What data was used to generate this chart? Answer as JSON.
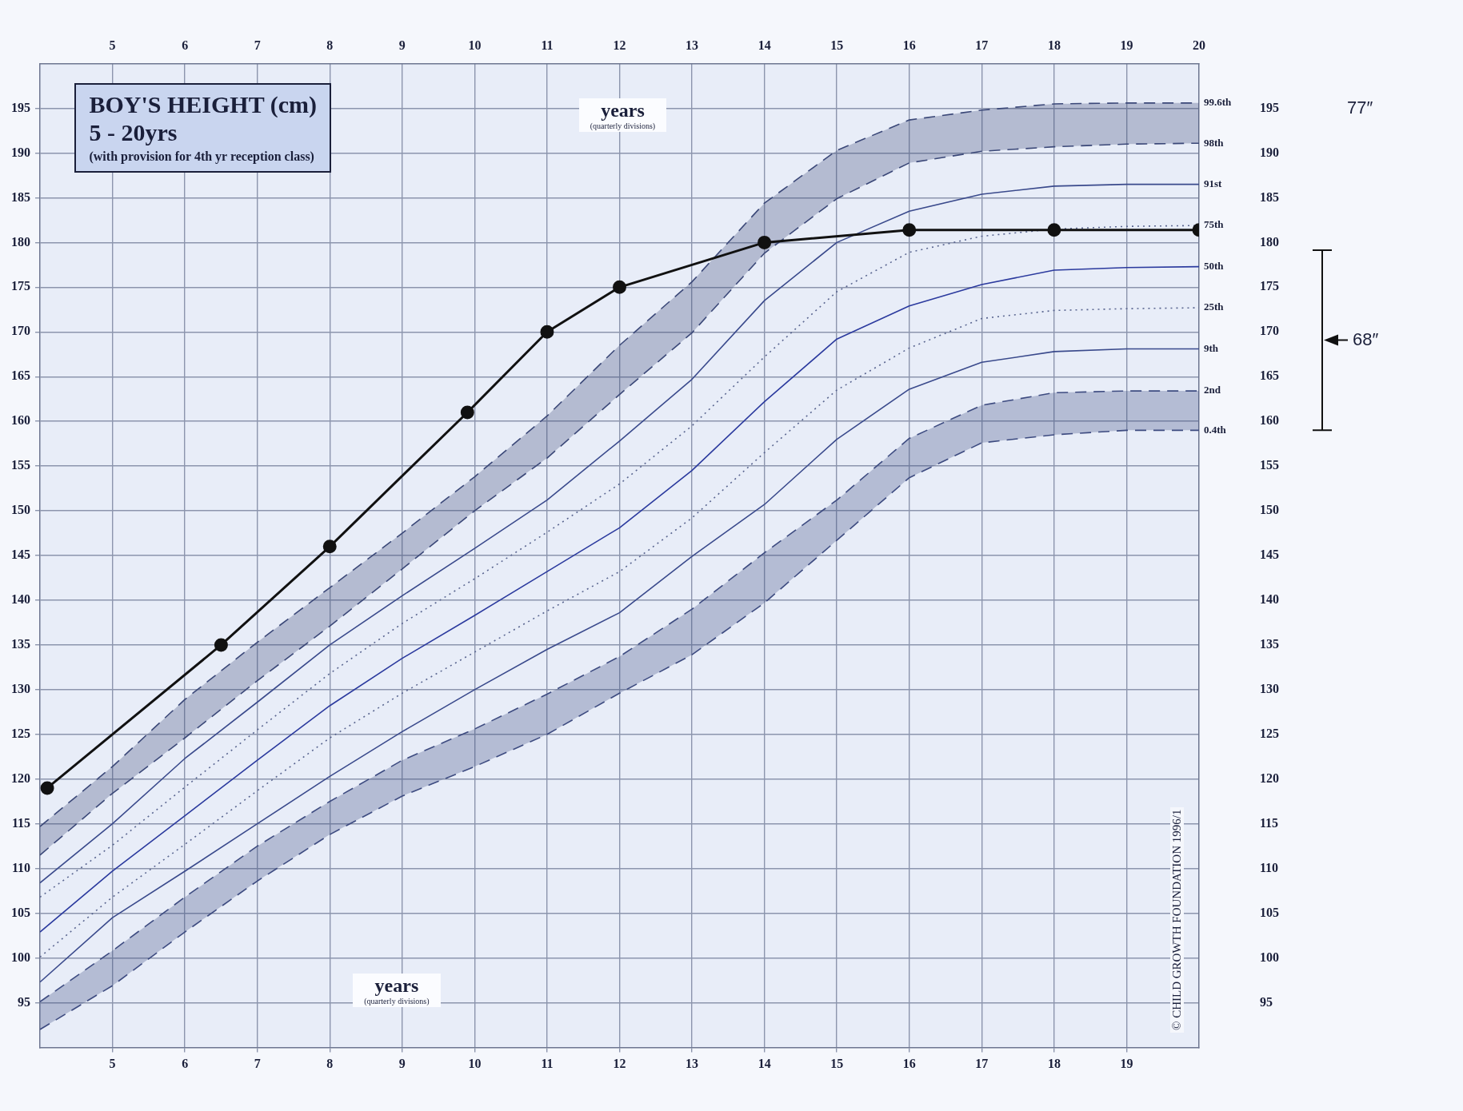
{
  "chart_data": {
    "type": "line",
    "title": "BOY'S HEIGHT (cm)",
    "subtitle": "5 - 20yrs",
    "xlabel": "years",
    "x2label": "years",
    "annotations": [
      "(with provision for 4th yr reception class)",
      "(quarterly divisions)",
      "(quarterly divisions)",
      "© CHILD GROWTH FOUNDATION 1996/1",
      "77″",
      "68″"
    ],
    "x": [
      4,
      5,
      6,
      7,
      8,
      9,
      10,
      11,
      12,
      13,
      14,
      15,
      16,
      17,
      18,
      19,
      20
    ],
    "series": [
      {
        "name": "99.6th",
        "color": "#3b4878",
        "line_style": "dashed",
        "values": [
          114.7,
          121.4,
          128.9,
          135.3,
          141.4,
          147.5,
          153.8,
          160.6,
          168.5,
          175.6,
          184.4,
          190.3,
          193.7,
          194.8,
          195.5,
          195.6,
          195.6
        ],
        "lower": [
          111.5,
          118.4,
          124.6,
          131.0,
          137.1,
          143.5,
          150.0,
          155.9,
          163.0,
          169.9,
          178.8,
          184.9,
          188.9,
          190.2,
          190.7,
          191.0,
          191.1
        ],
        "upper": [
          114.7,
          121.4,
          128.9,
          135.3,
          141.4,
          147.5,
          153.8,
          160.6,
          168.5,
          175.6,
          184.4,
          190.3,
          193.7,
          194.8,
          195.5,
          195.6,
          195.6
        ]
      },
      {
        "name": "98th",
        "color": "#3b4878",
        "line_style": "dashed",
        "values": [
          111.5,
          118.4,
          124.6,
          131.0,
          137.1,
          143.5,
          150.0,
          155.9,
          163.0,
          169.9,
          178.8,
          184.9,
          188.9,
          190.2,
          190.7,
          191.0,
          191.1
        ]
      },
      {
        "name": "91st",
        "color": "#3a4a8c",
        "line_style": "solid",
        "values": [
          108.4,
          115.0,
          122.3,
          128.6,
          135.0,
          140.5,
          145.8,
          151.2,
          157.8,
          164.7,
          173.5,
          180.0,
          183.5,
          185.4,
          186.3,
          186.5,
          186.5
        ]
      },
      {
        "name": "75th",
        "color": "#5a6690",
        "line_style": "dotted",
        "values": [
          106.8,
          112.6,
          119.1,
          125.5,
          131.8,
          137.4,
          142.4,
          147.6,
          153.0,
          159.5,
          167.2,
          174.5,
          178.9,
          180.7,
          181.5,
          181.8,
          181.9
        ]
      },
      {
        "name": "50th",
        "color": "#2b3a9e",
        "line_style": "solid",
        "values": [
          102.9,
          109.7,
          115.9,
          122.1,
          128.2,
          133.5,
          138.3,
          143.2,
          148.1,
          154.5,
          162.2,
          169.2,
          172.9,
          175.3,
          176.9,
          177.2,
          177.3
        ]
      },
      {
        "name": "25th",
        "color": "#5a6690",
        "line_style": "dotted",
        "values": [
          100.1,
          106.8,
          112.7,
          118.7,
          124.6,
          129.6,
          134.2,
          138.8,
          143.2,
          149.2,
          156.5,
          163.5,
          168.2,
          171.5,
          172.4,
          172.6,
          172.7
        ]
      },
      {
        "name": "9th",
        "color": "#3a4a8c",
        "line_style": "solid",
        "values": [
          97.3,
          104.5,
          109.7,
          115.0,
          120.3,
          125.3,
          130.0,
          134.5,
          138.6,
          144.9,
          150.7,
          158.0,
          163.6,
          166.6,
          167.8,
          168.1,
          168.1
        ]
      },
      {
        "name": "2nd",
        "color": "#3d4b80",
        "line_style": "dashed",
        "values": [
          95.1,
          100.8,
          106.8,
          112.5,
          117.5,
          122.1,
          125.6,
          129.5,
          133.7,
          139.0,
          145.3,
          151.2,
          158.1,
          161.8,
          163.2,
          163.4,
          163.4
        ]
      },
      {
        "name": "0.4th",
        "color": "#3d4b80",
        "line_style": "dashed",
        "values": [
          92.0,
          96.9,
          102.9,
          108.6,
          113.8,
          118.1,
          121.4,
          125.0,
          129.6,
          133.9,
          139.7,
          146.7,
          153.7,
          157.6,
          158.5,
          159.0,
          159.0
        ],
        "lower": [
          92.0,
          96.9,
          102.9,
          108.6,
          113.8,
          118.1,
          121.4,
          125.0,
          129.6,
          133.9,
          139.7,
          146.7,
          153.7,
          157.6,
          158.5,
          159.0,
          159.0
        ],
        "upper": [
          95.1,
          100.8,
          106.8,
          112.5,
          117.5,
          122.1,
          125.6,
          129.5,
          133.7,
          139.0,
          145.3,
          151.2,
          158.1,
          161.8,
          163.2,
          163.4,
          163.4
        ]
      },
      {
        "color": "#111111",
        "marker": "circle",
        "line_style": "solid",
        "x": [
          4.1,
          6.5,
          8,
          9.9,
          11,
          12,
          14,
          16,
          18,
          20
        ],
        "values": [
          119,
          135,
          146,
          161,
          170,
          175,
          180,
          181.4,
          181.4,
          181.4
        ]
      }
    ],
    "xlim": [
      4,
      20
    ],
    "xticks": [
      5,
      6,
      7,
      8,
      9,
      10,
      11,
      12,
      13,
      14,
      15,
      16,
      17,
      18,
      19
    ],
    "x2lim": [
      4,
      20
    ],
    "x2ticks": [
      5,
      6,
      7,
      8,
      9,
      10,
      11,
      12,
      13,
      14,
      15,
      16,
      17,
      18,
      19,
      20
    ],
    "ylim": [
      90,
      200
    ],
    "yticks": [
      95,
      100,
      105,
      110,
      115,
      120,
      125,
      130,
      135,
      140,
      145,
      150,
      155,
      160,
      165,
      170,
      175,
      180,
      185,
      190,
      195
    ],
    "y2lim": [
      90,
      200
    ],
    "y2ticks": [
      95,
      100,
      105,
      110,
      115,
      120,
      125,
      130,
      135,
      140,
      145,
      150,
      155,
      160,
      165,
      170,
      175,
      180,
      185,
      190,
      195
    ],
    "grid": true,
    "legend": false,
    "marker": "none"
  }
}
